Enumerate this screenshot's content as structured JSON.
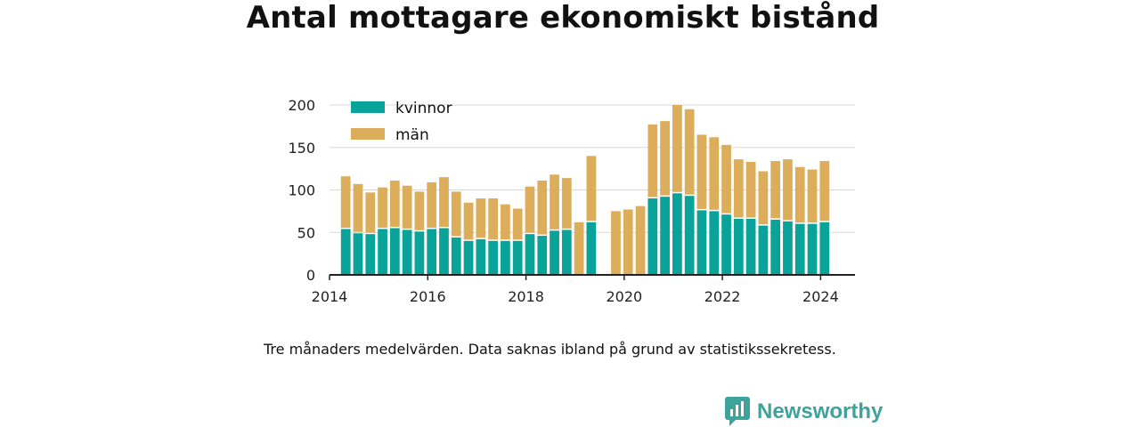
{
  "title": "Antal mottagare ekonomiskt bistånd",
  "note": "Tre månaders medelvärden. Data saknas ibland på grund av statistikssekretess.",
  "logo": {
    "text": "Newsworthy",
    "icon": "chart-speech-bubble-icon",
    "color": "#3ea39b"
  },
  "colors": {
    "kvinnor": "#0aa39a",
    "man": "#dcad5a",
    "grid": "#d9d9d9",
    "axis": "#222222"
  },
  "chart_data": {
    "type": "bar",
    "stacked": true,
    "title": "Antal mottagare ekonomiskt bistånd",
    "xlabel": "",
    "ylabel": "",
    "ylim": [
      0,
      200
    ],
    "xlim": [
      2014.0,
      2024.7
    ],
    "yticks": [
      0,
      50,
      100,
      150,
      200
    ],
    "xticks": [
      2014,
      2016,
      2018,
      2020,
      2022,
      2024
    ],
    "grid": true,
    "legend_position": "top-left",
    "x": [
      2014.33,
      2014.58,
      2014.83,
      2015.08,
      2015.33,
      2015.58,
      2015.83,
      2016.08,
      2016.33,
      2016.58,
      2016.83,
      2017.08,
      2017.33,
      2017.58,
      2017.83,
      2018.08,
      2018.33,
      2018.58,
      2018.83,
      2019.08,
      2019.33,
      2019.83,
      2020.08,
      2020.33,
      2020.58,
      2020.83,
      2021.08,
      2021.33,
      2021.58,
      2021.83,
      2022.08,
      2022.33,
      2022.58,
      2022.83,
      2023.08,
      2023.33,
      2023.58,
      2023.83,
      2024.08
    ],
    "series": [
      {
        "name": "kvinnor",
        "color": "#0aa39a",
        "values": [
          54,
          49,
          48,
          54,
          55,
          53,
          51,
          54,
          55,
          44,
          40,
          42,
          40,
          40,
          40,
          48,
          46,
          52,
          53,
          null,
          62,
          null,
          null,
          null,
          90,
          92,
          96,
          93,
          76,
          75,
          71,
          66,
          66,
          58,
          65,
          63,
          60,
          60,
          62
        ]
      },
      {
        "name": "män",
        "color": "#dcad5a",
        "values": [
          62,
          58,
          49,
          49,
          56,
          52,
          47,
          55,
          60,
          54,
          45,
          48,
          50,
          43,
          38,
          56,
          65,
          66,
          61,
          62,
          78,
          75,
          77,
          81,
          87,
          89,
          104,
          102,
          89,
          87,
          82,
          70,
          67,
          64,
          69,
          73,
          67,
          64,
          72
        ]
      }
    ]
  }
}
